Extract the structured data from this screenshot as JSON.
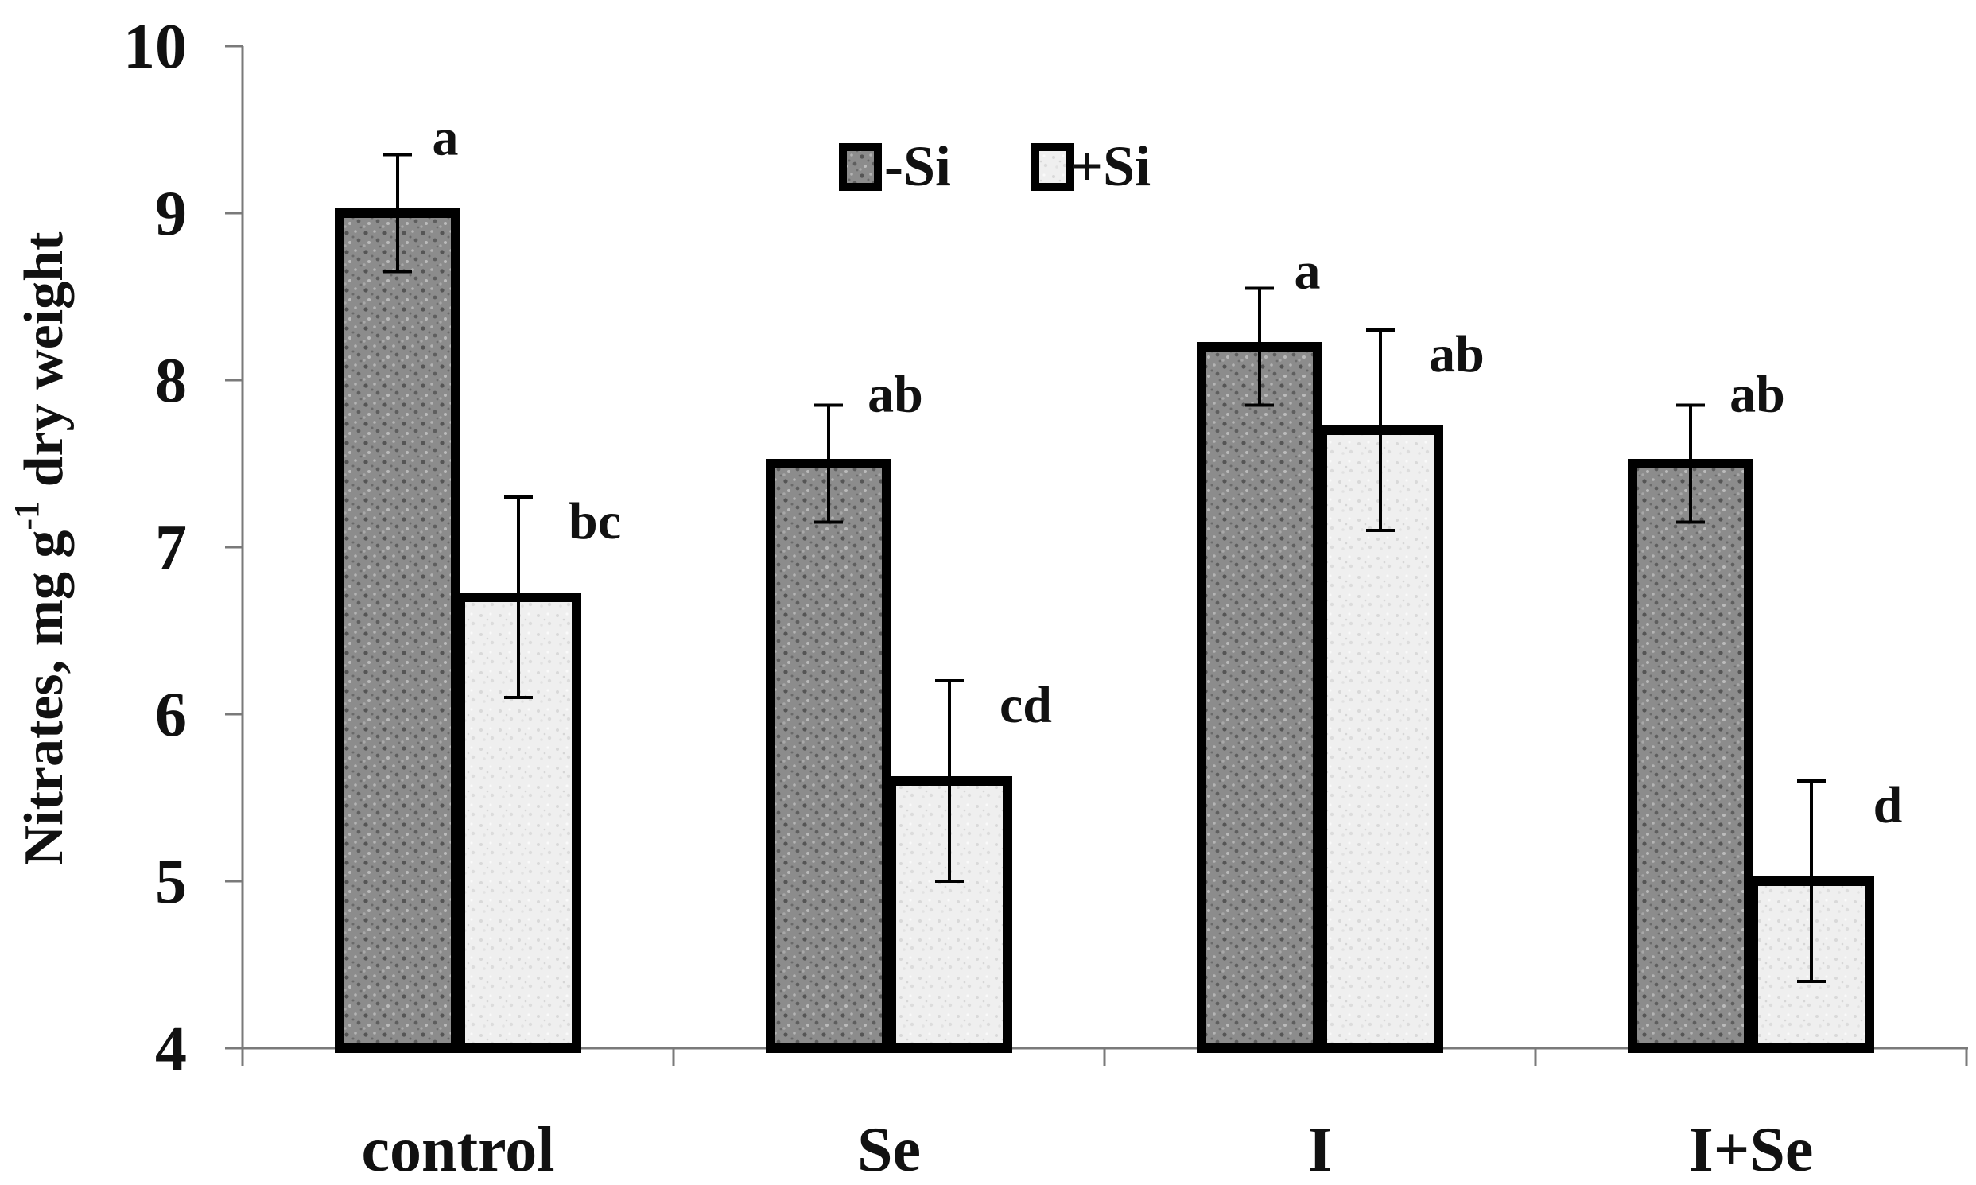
{
  "chart_data": {
    "type": "bar",
    "ylabel": "Nitrates, mg g-1 dry weight",
    "ylabel_parts": {
      "before": "Nitrates, mg g",
      "superscript": "-1",
      "after": " dry weight"
    },
    "xlabel": "",
    "categories": [
      "control",
      "Se",
      "I",
      "I+Se"
    ],
    "ylim": [
      4,
      10
    ],
    "yticks": [
      "4",
      "5",
      "6",
      "7",
      "8",
      "9",
      "10"
    ],
    "series": [
      {
        "name": "-Si",
        "values": [
          9.0,
          7.5,
          8.2,
          7.5
        ],
        "errors": [
          0.35,
          0.35,
          0.35,
          0.35
        ],
        "labels": [
          "a",
          "ab",
          "a",
          "ab"
        ],
        "color": "#8a8a8a"
      },
      {
        "name": "+Si",
        "values": [
          6.7,
          5.6,
          7.7,
          5.0
        ],
        "errors": [
          0.6,
          0.6,
          0.6,
          0.6
        ],
        "labels": [
          "bc",
          "cd",
          "ab",
          "d"
        ],
        "color": "#eeeeee"
      }
    ],
    "legend_position": "top-center",
    "grid": false
  }
}
